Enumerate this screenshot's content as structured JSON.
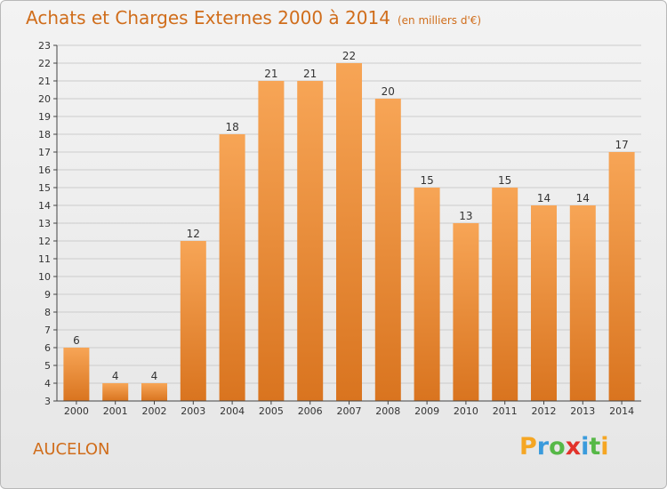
{
  "header": {
    "title": "Achats et Charges Externes 2000 à 2014",
    "subtitle": "(en milliers d'€)"
  },
  "footer": {
    "commune": "AUCELON",
    "brand_letters": [
      "P",
      "r",
      "o",
      "x",
      "i",
      "t",
      "i"
    ],
    "brand_colors": [
      "#f5a623",
      "#3a9bdc",
      "#56b847",
      "#e2322a",
      "#3a9bdc",
      "#56b847",
      "#f5a623"
    ]
  },
  "colors": {
    "title": "#d06d1b",
    "bar_top": "#f7a556",
    "bar_bottom": "#d9741f",
    "grid": "#cccccc",
    "axis": "#444444"
  },
  "chart_data": {
    "type": "bar",
    "categories": [
      "2000",
      "2001",
      "2002",
      "2003",
      "2004",
      "2005",
      "2006",
      "2007",
      "2008",
      "2009",
      "2010",
      "2011",
      "2012",
      "2013",
      "2014"
    ],
    "values": [
      6,
      4,
      4,
      12,
      18,
      21,
      21,
      22,
      20,
      15,
      13,
      15,
      14,
      14,
      17
    ],
    "ylim": [
      3,
      23
    ],
    "yticks": [
      3,
      4,
      5,
      6,
      7,
      8,
      9,
      10,
      11,
      12,
      13,
      14,
      15,
      16,
      17,
      18,
      19,
      20,
      21,
      22,
      23
    ],
    "grid": true,
    "legend": "none",
    "title": "Achats et Charges Externes 2000 à 2014",
    "subtitle": "(en milliers d'€)",
    "xlabel": "",
    "ylabel": ""
  }
}
